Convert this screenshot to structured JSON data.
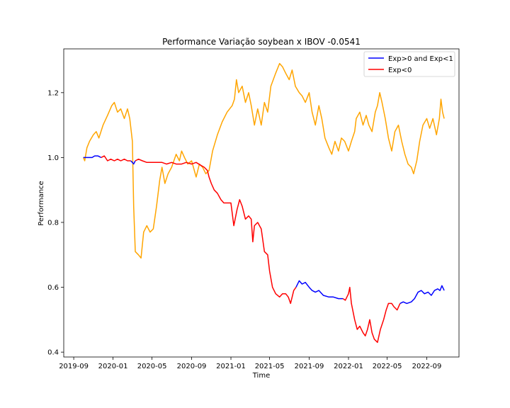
{
  "chart_data": {
    "type": "line",
    "title": "Performance Variação soybean x IBOV -0.0541",
    "xlabel": "Time",
    "ylabel": "Performance",
    "xlim": [
      "2019-08-01",
      "2022-12-10"
    ],
    "ylim": [
      0.385,
      1.335
    ],
    "x_ticks": [
      "2019-09",
      "2020-01",
      "2020-05",
      "2020-09",
      "2021-01",
      "2021-05",
      "2021-09",
      "2022-01",
      "2022-05",
      "2022-09"
    ],
    "x_tick_dates": [
      "2019-09-01",
      "2020-01-01",
      "2020-05-01",
      "2020-09-01",
      "2021-01-01",
      "2021-05-01",
      "2021-09-01",
      "2022-01-01",
      "2022-05-01",
      "2022-09-01"
    ],
    "y_ticks": [
      0.4,
      0.6,
      0.8,
      1.0,
      1.2
    ],
    "y_tick_labels": [
      "0.4",
      "0.6",
      "0.8",
      "1.0",
      "1.2"
    ],
    "grid": false,
    "legend_position": "top-right",
    "legend": [
      {
        "label": "Exp>0 and Exp<1",
        "color": "#0000ff"
      },
      {
        "label": "Exp<0",
        "color": "#ff0000"
      }
    ],
    "series": [
      {
        "color": "#ffa500",
        "points": [
          [
            "2019-10-01",
            1.0
          ],
          [
            "2019-10-05",
            0.99
          ],
          [
            "2019-10-12",
            1.03
          ],
          [
            "2019-10-20",
            1.05
          ],
          [
            "2019-11-01",
            1.07
          ],
          [
            "2019-11-10",
            1.08
          ],
          [
            "2019-11-18",
            1.06
          ],
          [
            "2019-12-01",
            1.1
          ],
          [
            "2019-12-15",
            1.13
          ],
          [
            "2019-12-28",
            1.16
          ],
          [
            "2020-01-05",
            1.17
          ],
          [
            "2020-01-15",
            1.14
          ],
          [
            "2020-01-25",
            1.15
          ],
          [
            "2020-02-05",
            1.12
          ],
          [
            "2020-02-15",
            1.15
          ],
          [
            "2020-02-22",
            1.12
          ],
          [
            "2020-03-01",
            1.05
          ],
          [
            "2020-03-05",
            0.85
          ],
          [
            "2020-03-10",
            0.71
          ],
          [
            "2020-03-20",
            0.7
          ],
          [
            "2020-03-28",
            0.69
          ],
          [
            "2020-04-05",
            0.77
          ],
          [
            "2020-04-15",
            0.79
          ],
          [
            "2020-04-25",
            0.77
          ],
          [
            "2020-05-05",
            0.78
          ],
          [
            "2020-05-15",
            0.85
          ],
          [
            "2020-05-25",
            0.93
          ],
          [
            "2020-06-01",
            0.97
          ],
          [
            "2020-06-10",
            0.92
          ],
          [
            "2020-06-20",
            0.95
          ],
          [
            "2020-07-01",
            0.97
          ],
          [
            "2020-07-15",
            1.01
          ],
          [
            "2020-07-25",
            0.99
          ],
          [
            "2020-08-01",
            1.02
          ],
          [
            "2020-08-10",
            1.0
          ],
          [
            "2020-08-20",
            0.98
          ],
          [
            "2020-09-01",
            0.99
          ],
          [
            "2020-09-15",
            0.94
          ],
          [
            "2020-09-25",
            0.98
          ],
          [
            "2020-10-05",
            0.97
          ],
          [
            "2020-10-15",
            0.95
          ],
          [
            "2020-10-25",
            0.96
          ],
          [
            "2020-11-05",
            1.02
          ],
          [
            "2020-11-20",
            1.07
          ],
          [
            "2020-12-05",
            1.11
          ],
          [
            "2020-12-20",
            1.14
          ],
          [
            "2021-01-05",
            1.16
          ],
          [
            "2021-01-12",
            1.18
          ],
          [
            "2021-01-18",
            1.24
          ],
          [
            "2021-01-25",
            1.2
          ],
          [
            "2021-02-05",
            1.22
          ],
          [
            "2021-02-15",
            1.17
          ],
          [
            "2021-02-25",
            1.2
          ],
          [
            "2021-03-05",
            1.16
          ],
          [
            "2021-03-15",
            1.1
          ],
          [
            "2021-03-25",
            1.15
          ],
          [
            "2021-04-05",
            1.1
          ],
          [
            "2021-04-15",
            1.17
          ],
          [
            "2021-04-25",
            1.14
          ],
          [
            "2021-05-05",
            1.22
          ],
          [
            "2021-05-20",
            1.26
          ],
          [
            "2021-06-01",
            1.29
          ],
          [
            "2021-06-10",
            1.28
          ],
          [
            "2021-06-20",
            1.26
          ],
          [
            "2021-07-01",
            1.24
          ],
          [
            "2021-07-10",
            1.27
          ],
          [
            "2021-07-20",
            1.22
          ],
          [
            "2021-08-01",
            1.2
          ],
          [
            "2021-08-10",
            1.19
          ],
          [
            "2021-08-20",
            1.17
          ],
          [
            "2021-09-01",
            1.2
          ],
          [
            "2021-09-10",
            1.14
          ],
          [
            "2021-09-20",
            1.1
          ],
          [
            "2021-10-01",
            1.16
          ],
          [
            "2021-10-10",
            1.12
          ],
          [
            "2021-10-20",
            1.06
          ],
          [
            "2021-11-01",
            1.03
          ],
          [
            "2021-11-10",
            1.01
          ],
          [
            "2021-11-20",
            1.05
          ],
          [
            "2021-12-01",
            1.02
          ],
          [
            "2021-12-10",
            1.06
          ],
          [
            "2021-12-20",
            1.05
          ],
          [
            "2022-01-01",
            1.02
          ],
          [
            "2022-01-10",
            1.05
          ],
          [
            "2022-01-20",
            1.08
          ],
          [
            "2022-01-25",
            1.12
          ],
          [
            "2022-02-05",
            1.14
          ],
          [
            "2022-02-15",
            1.1
          ],
          [
            "2022-02-25",
            1.13
          ],
          [
            "2022-03-05",
            1.1
          ],
          [
            "2022-03-15",
            1.08
          ],
          [
            "2022-03-25",
            1.14
          ],
          [
            "2022-04-01",
            1.16
          ],
          [
            "2022-04-08",
            1.2
          ],
          [
            "2022-04-15",
            1.17
          ],
          [
            "2022-04-25",
            1.12
          ],
          [
            "2022-05-05",
            1.06
          ],
          [
            "2022-05-15",
            1.02
          ],
          [
            "2022-05-25",
            1.08
          ],
          [
            "2022-06-05",
            1.1
          ],
          [
            "2022-06-15",
            1.05
          ],
          [
            "2022-06-25",
            1.01
          ],
          [
            "2022-07-05",
            0.98
          ],
          [
            "2022-07-15",
            0.97
          ],
          [
            "2022-07-22",
            0.95
          ],
          [
            "2022-08-01",
            0.99
          ],
          [
            "2022-08-10",
            1.05
          ],
          [
            "2022-08-20",
            1.1
          ],
          [
            "2022-09-01",
            1.12
          ],
          [
            "2022-09-10",
            1.09
          ],
          [
            "2022-09-20",
            1.12
          ],
          [
            "2022-10-01",
            1.07
          ],
          [
            "2022-10-10",
            1.12
          ],
          [
            "2022-10-15",
            1.18
          ],
          [
            "2022-10-20",
            1.14
          ],
          [
            "2022-10-25",
            1.12
          ]
        ]
      },
      {
        "color": "#0000ff",
        "points": [
          [
            "2019-10-01",
            1.0
          ],
          [
            "2019-10-10",
            1.0
          ],
          [
            "2019-10-20",
            1.0
          ],
          [
            "2019-10-28",
            1.0
          ],
          [
            "2019-11-05",
            1.005
          ],
          [
            "2019-11-15",
            1.005
          ],
          [
            "2019-11-25",
            1.0
          ]
        ]
      },
      {
        "color": "#ff0000",
        "points": [
          [
            "2019-11-25",
            1.0
          ],
          [
            "2019-12-05",
            1.005
          ],
          [
            "2019-12-15",
            0.99
          ],
          [
            "2019-12-25",
            0.995
          ],
          [
            "2020-01-05",
            0.99
          ],
          [
            "2020-01-15",
            0.995
          ],
          [
            "2020-01-25",
            0.99
          ],
          [
            "2020-02-05",
            0.995
          ],
          [
            "2020-02-15",
            0.99
          ],
          [
            "2020-02-25",
            0.99
          ]
        ]
      },
      {
        "color": "#0000ff",
        "points": [
          [
            "2020-02-25",
            0.99
          ],
          [
            "2020-03-01",
            0.985
          ],
          [
            "2020-03-05",
            0.98
          ],
          [
            "2020-03-10",
            0.99
          ]
        ]
      },
      {
        "color": "#ff0000",
        "points": [
          [
            "2020-03-10",
            0.99
          ],
          [
            "2020-03-20",
            0.995
          ],
          [
            "2020-04-01",
            0.99
          ],
          [
            "2020-04-15",
            0.985
          ],
          [
            "2020-05-01",
            0.985
          ],
          [
            "2020-05-15",
            0.985
          ],
          [
            "2020-06-01",
            0.985
          ],
          [
            "2020-06-15",
            0.98
          ],
          [
            "2020-07-01",
            0.985
          ],
          [
            "2020-07-15",
            0.98
          ],
          [
            "2020-08-01",
            0.98
          ],
          [
            "2020-08-15",
            0.985
          ],
          [
            "2020-09-01",
            0.98
          ],
          [
            "2020-09-15",
            0.985
          ],
          [
            "2020-10-01",
            0.975
          ],
          [
            "2020-10-10",
            0.97
          ],
          [
            "2020-10-20",
            0.96
          ],
          [
            "2020-10-25",
            0.94
          ],
          [
            "2020-11-01",
            0.92
          ],
          [
            "2020-11-10",
            0.9
          ],
          [
            "2020-11-20",
            0.89
          ],
          [
            "2020-12-01",
            0.87
          ],
          [
            "2020-12-10",
            0.86
          ],
          [
            "2020-12-20",
            0.86
          ],
          [
            "2021-01-01",
            0.86
          ],
          [
            "2021-01-10",
            0.79
          ],
          [
            "2021-01-20",
            0.84
          ],
          [
            "2021-01-28",
            0.87
          ],
          [
            "2021-02-05",
            0.85
          ],
          [
            "2021-02-15",
            0.81
          ],
          [
            "2021-02-25",
            0.82
          ],
          [
            "2021-03-05",
            0.81
          ],
          [
            "2021-03-10",
            0.74
          ],
          [
            "2021-03-15",
            0.79
          ],
          [
            "2021-03-25",
            0.8
          ],
          [
            "2021-04-05",
            0.78
          ],
          [
            "2021-04-15",
            0.71
          ],
          [
            "2021-04-25",
            0.7
          ],
          [
            "2021-05-01",
            0.65
          ],
          [
            "2021-05-10",
            0.6
          ],
          [
            "2021-05-20",
            0.58
          ],
          [
            "2021-06-01",
            0.57
          ],
          [
            "2021-06-10",
            0.58
          ],
          [
            "2021-06-20",
            0.58
          ],
          [
            "2021-06-28",
            0.57
          ],
          [
            "2021-07-05",
            0.55
          ],
          [
            "2021-07-15",
            0.59
          ],
          [
            "2021-07-22",
            0.6
          ]
        ]
      },
      {
        "color": "#0000ff",
        "points": [
          [
            "2021-07-22",
            0.6
          ],
          [
            "2021-08-01",
            0.62
          ],
          [
            "2021-08-10",
            0.61
          ],
          [
            "2021-08-20",
            0.615
          ],
          [
            "2021-09-01",
            0.6
          ],
          [
            "2021-09-10",
            0.59
          ],
          [
            "2021-09-20",
            0.585
          ],
          [
            "2021-10-01",
            0.59
          ],
          [
            "2021-10-15",
            0.575
          ],
          [
            "2021-11-01",
            0.57
          ],
          [
            "2021-11-15",
            0.57
          ],
          [
            "2021-12-01",
            0.565
          ],
          [
            "2021-12-15",
            0.565
          ]
        ]
      },
      {
        "color": "#ff0000",
        "points": [
          [
            "2021-12-15",
            0.565
          ],
          [
            "2021-12-22",
            0.56
          ],
          [
            "2022-01-01",
            0.58
          ],
          [
            "2022-01-05",
            0.6
          ],
          [
            "2022-01-10",
            0.55
          ],
          [
            "2022-01-20",
            0.5
          ],
          [
            "2022-01-28",
            0.47
          ],
          [
            "2022-02-05",
            0.48
          ],
          [
            "2022-02-15",
            0.46
          ],
          [
            "2022-02-22",
            0.45
          ],
          [
            "2022-03-01",
            0.47
          ],
          [
            "2022-03-08",
            0.5
          ],
          [
            "2022-03-15",
            0.46
          ],
          [
            "2022-03-22",
            0.44
          ],
          [
            "2022-04-01",
            0.43
          ],
          [
            "2022-04-10",
            0.47
          ],
          [
            "2022-04-20",
            0.5
          ],
          [
            "2022-04-28",
            0.53
          ],
          [
            "2022-05-05",
            0.55
          ],
          [
            "2022-05-15",
            0.55
          ],
          [
            "2022-05-22",
            0.54
          ],
          [
            "2022-06-01",
            0.53
          ],
          [
            "2022-06-10",
            0.55
          ]
        ]
      },
      {
        "color": "#0000ff",
        "points": [
          [
            "2022-06-10",
            0.55
          ],
          [
            "2022-06-20",
            0.555
          ],
          [
            "2022-07-01",
            0.55
          ],
          [
            "2022-07-15",
            0.555
          ],
          [
            "2022-07-25",
            0.565
          ],
          [
            "2022-08-05",
            0.585
          ],
          [
            "2022-08-15",
            0.59
          ],
          [
            "2022-08-25",
            0.58
          ],
          [
            "2022-09-05",
            0.585
          ],
          [
            "2022-09-15",
            0.575
          ],
          [
            "2022-09-25",
            0.59
          ],
          [
            "2022-10-05",
            0.595
          ],
          [
            "2022-10-12",
            0.59
          ],
          [
            "2022-10-18",
            0.605
          ],
          [
            "2022-10-25",
            0.59
          ]
        ]
      }
    ]
  }
}
